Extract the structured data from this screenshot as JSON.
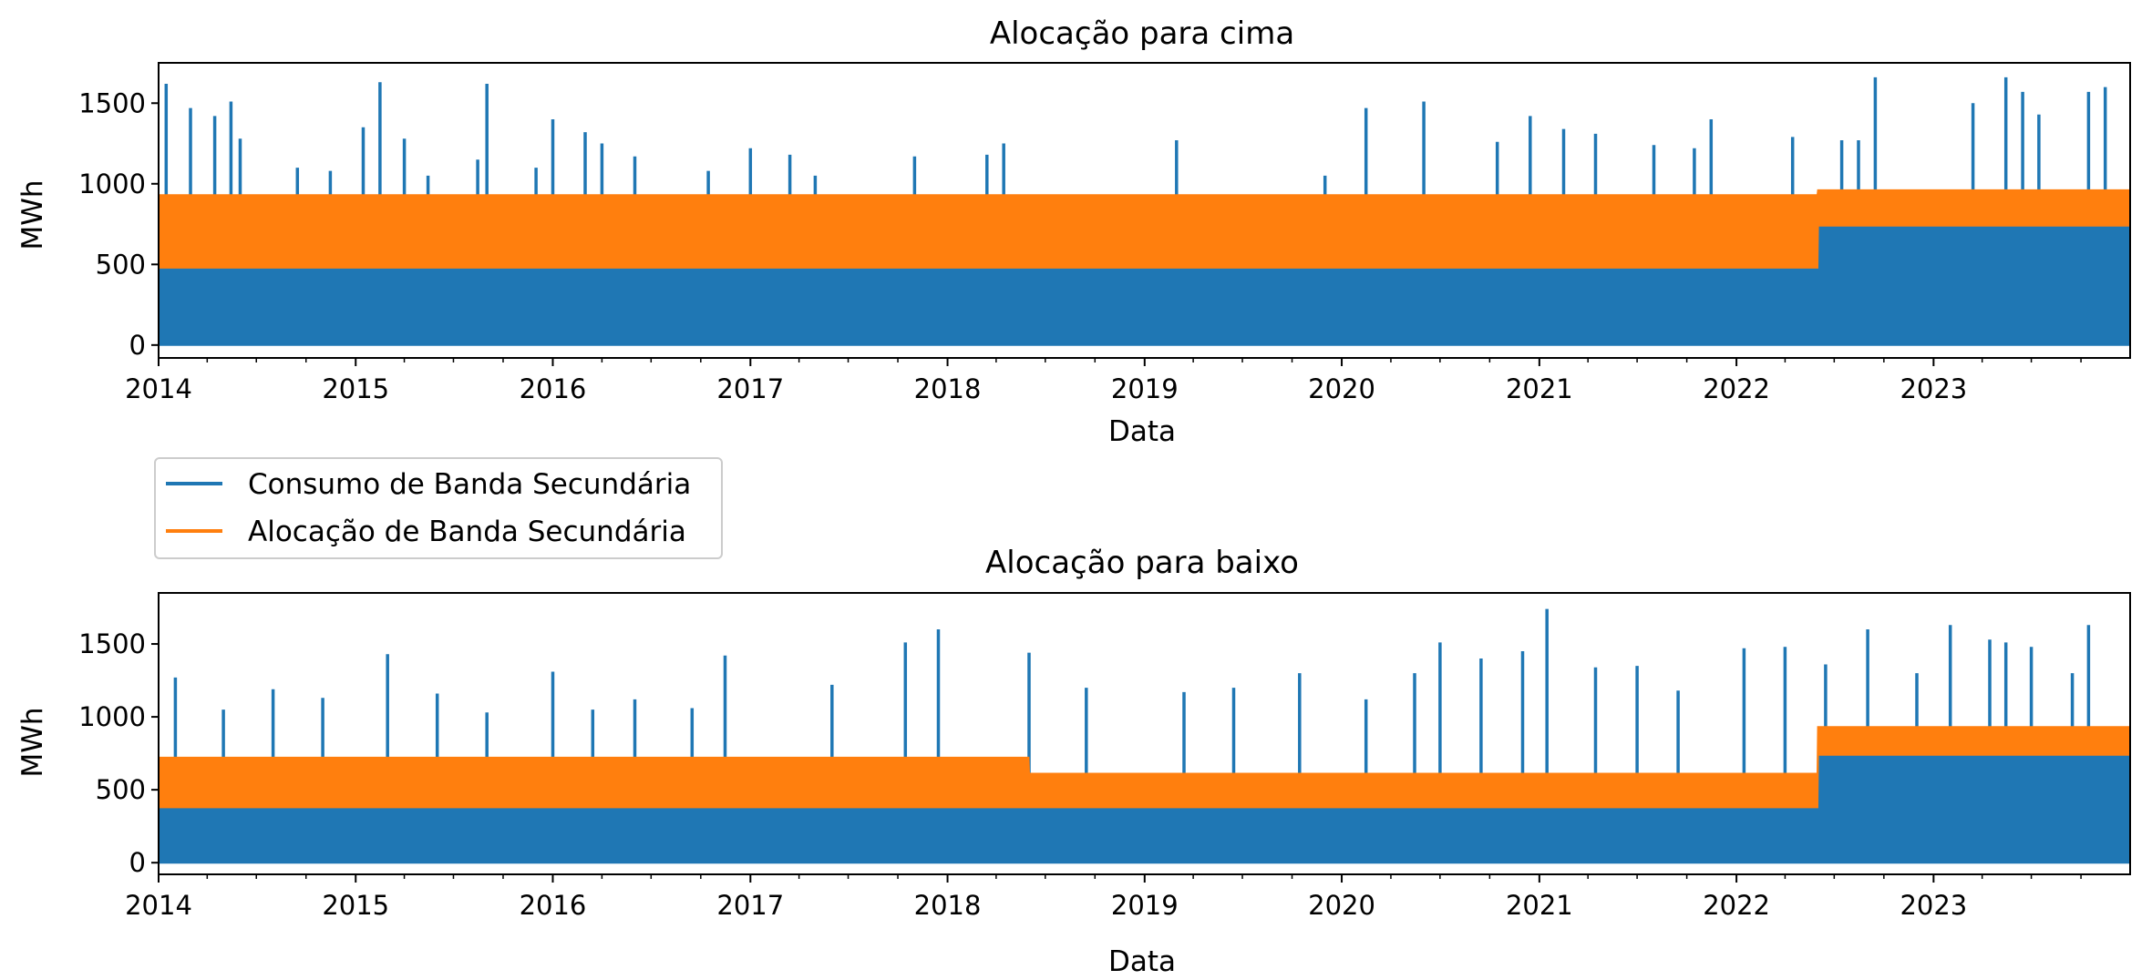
{
  "chart_data": [
    {
      "type": "line",
      "title": "Alocação para cima",
      "xlabel": "Data",
      "ylabel": "MWh",
      "xlim": [
        "2014-01-01",
        "2023-12-31"
      ],
      "ylim": [
        -80,
        1750
      ],
      "x_ticks": [
        "2014",
        "2015",
        "2016",
        "2017",
        "2018",
        "2019",
        "2020",
        "2021",
        "2022",
        "2023"
      ],
      "y_ticks": [
        0,
        500,
        1000,
        1500
      ],
      "grid": false,
      "series": [
        {
          "name": "Consumo de Banda Secundária",
          "color": "#1f77b4",
          "band": [
            {
              "x": "2014-01-01",
              "low": 0,
              "high": 480
            },
            {
              "x": "2022-05-31",
              "low": 0,
              "high": 480
            },
            {
              "x": "2022-06-01",
              "low": 0,
              "high": 740
            },
            {
              "x": "2023-12-31",
              "low": 0,
              "high": 740
            }
          ],
          "peaks": [
            {
              "x": "2014-01-15",
              "y": 1620
            },
            {
              "x": "2014-03-01",
              "y": 1470
            },
            {
              "x": "2014-04-15",
              "y": 1420
            },
            {
              "x": "2014-05-15",
              "y": 1510
            },
            {
              "x": "2014-06-01",
              "y": 1280
            },
            {
              "x": "2014-09-15",
              "y": 1100
            },
            {
              "x": "2014-11-15",
              "y": 1080
            },
            {
              "x": "2015-01-15",
              "y": 1350
            },
            {
              "x": "2015-02-15",
              "y": 1630
            },
            {
              "x": "2015-04-01",
              "y": 1280
            },
            {
              "x": "2015-05-15",
              "y": 1050
            },
            {
              "x": "2015-08-15",
              "y": 1150
            },
            {
              "x": "2015-09-01",
              "y": 1620
            },
            {
              "x": "2015-12-01",
              "y": 1100
            },
            {
              "x": "2016-01-01",
              "y": 1400
            },
            {
              "x": "2016-03-01",
              "y": 1320
            },
            {
              "x": "2016-04-01",
              "y": 1250
            },
            {
              "x": "2016-06-01",
              "y": 1170
            },
            {
              "x": "2016-10-15",
              "y": 1080
            },
            {
              "x": "2017-01-01",
              "y": 1220
            },
            {
              "x": "2017-03-15",
              "y": 1180
            },
            {
              "x": "2017-05-01",
              "y": 1050
            },
            {
              "x": "2017-11-01",
              "y": 1170
            },
            {
              "x": "2018-03-15",
              "y": 1180
            },
            {
              "x": "2018-04-15",
              "y": 1250
            },
            {
              "x": "2019-03-01",
              "y": 1270
            },
            {
              "x": "2019-12-01",
              "y": 1050
            },
            {
              "x": "2020-02-15",
              "y": 1470
            },
            {
              "x": "2020-06-01",
              "y": 1510
            },
            {
              "x": "2020-10-15",
              "y": 1260
            },
            {
              "x": "2020-12-15",
              "y": 1420
            },
            {
              "x": "2021-02-15",
              "y": 1340
            },
            {
              "x": "2021-04-15",
              "y": 1310
            },
            {
              "x": "2021-08-01",
              "y": 1240
            },
            {
              "x": "2021-10-15",
              "y": 1220
            },
            {
              "x": "2021-11-15",
              "y": 1400
            },
            {
              "x": "2022-04-15",
              "y": 1290
            },
            {
              "x": "2022-07-15",
              "y": 1270
            },
            {
              "x": "2022-08-15",
              "y": 1270
            },
            {
              "x": "2022-09-15",
              "y": 1660
            },
            {
              "x": "2023-03-15",
              "y": 1500
            },
            {
              "x": "2023-05-15",
              "y": 1660
            },
            {
              "x": "2023-06-15",
              "y": 1570
            },
            {
              "x": "2023-07-15",
              "y": 1430
            },
            {
              "x": "2023-10-15",
              "y": 1570
            },
            {
              "x": "2023-11-15",
              "y": 1600
            }
          ]
        },
        {
          "name": "Alocação de Banda Secundária",
          "color": "#ff7f0e",
          "band": [
            {
              "x": "2014-01-01",
              "low": 480,
              "high": 930
            },
            {
              "x": "2022-05-31",
              "low": 480,
              "high": 930
            },
            {
              "x": "2022-06-01",
              "low": 740,
              "high": 960
            },
            {
              "x": "2023-12-31",
              "low": 740,
              "high": 960
            }
          ]
        }
      ]
    },
    {
      "type": "line",
      "title": "Alocação para baixo",
      "xlabel": "Data",
      "ylabel": "MWh",
      "xlim": [
        "2014-01-01",
        "2023-12-31"
      ],
      "ylim": [
        -80,
        1850
      ],
      "x_ticks": [
        "2014",
        "2015",
        "2016",
        "2017",
        "2018",
        "2019",
        "2020",
        "2021",
        "2022",
        "2023"
      ],
      "y_ticks": [
        0,
        500,
        1000,
        1500
      ],
      "grid": false,
      "series": [
        {
          "name": "Consumo de Banda Secundária",
          "color": "#1f77b4",
          "band": [
            {
              "x": "2014-01-01",
              "low": 0,
              "high": 380
            },
            {
              "x": "2022-05-31",
              "low": 0,
              "high": 380
            },
            {
              "x": "2022-06-01",
              "low": 0,
              "high": 740
            },
            {
              "x": "2023-12-31",
              "low": 0,
              "high": 740
            }
          ],
          "peaks": [
            {
              "x": "2014-02-01",
              "y": 1270
            },
            {
              "x": "2014-05-01",
              "y": 1050
            },
            {
              "x": "2014-08-01",
              "y": 1190
            },
            {
              "x": "2014-11-01",
              "y": 1130
            },
            {
              "x": "2015-03-01",
              "y": 1430
            },
            {
              "x": "2015-06-01",
              "y": 1160
            },
            {
              "x": "2015-09-01",
              "y": 1030
            },
            {
              "x": "2016-01-01",
              "y": 1310
            },
            {
              "x": "2016-03-15",
              "y": 1050
            },
            {
              "x": "2016-06-01",
              "y": 1120
            },
            {
              "x": "2016-09-15",
              "y": 1060
            },
            {
              "x": "2016-11-15",
              "y": 1420
            },
            {
              "x": "2017-06-01",
              "y": 1220
            },
            {
              "x": "2017-10-15",
              "y": 1510
            },
            {
              "x": "2017-12-15",
              "y": 1600
            },
            {
              "x": "2018-06-01",
              "y": 1440
            },
            {
              "x": "2018-09-15",
              "y": 1200
            },
            {
              "x": "2019-03-15",
              "y": 1170
            },
            {
              "x": "2019-06-15",
              "y": 1200
            },
            {
              "x": "2019-10-15",
              "y": 1300
            },
            {
              "x": "2020-02-15",
              "y": 1120
            },
            {
              "x": "2020-05-15",
              "y": 1300
            },
            {
              "x": "2020-07-01",
              "y": 1510
            },
            {
              "x": "2020-09-15",
              "y": 1400
            },
            {
              "x": "2020-12-01",
              "y": 1450
            },
            {
              "x": "2021-01-15",
              "y": 1740
            },
            {
              "x": "2021-04-15",
              "y": 1340
            },
            {
              "x": "2021-07-01",
              "y": 1350
            },
            {
              "x": "2021-09-15",
              "y": 1180
            },
            {
              "x": "2022-01-15",
              "y": 1470
            },
            {
              "x": "2022-04-01",
              "y": 1480
            },
            {
              "x": "2022-06-15",
              "y": 1360
            },
            {
              "x": "2022-09-01",
              "y": 1600
            },
            {
              "x": "2022-12-01",
              "y": 1300
            },
            {
              "x": "2023-02-01",
              "y": 1630
            },
            {
              "x": "2023-04-15",
              "y": 1530
            },
            {
              "x": "2023-05-15",
              "y": 1510
            },
            {
              "x": "2023-07-01",
              "y": 1480
            },
            {
              "x": "2023-09-15",
              "y": 1300
            },
            {
              "x": "2023-10-15",
              "y": 1630
            }
          ]
        },
        {
          "name": "Alocação de Banda Secundária",
          "color": "#ff7f0e",
          "band": [
            {
              "x": "2014-01-01",
              "low": 380,
              "high": 720
            },
            {
              "x": "2018-05-31",
              "low": 380,
              "high": 720
            },
            {
              "x": "2018-06-01",
              "low": 380,
              "high": 610
            },
            {
              "x": "2022-05-31",
              "low": 380,
              "high": 610
            },
            {
              "x": "2022-06-01",
              "low": 740,
              "high": 930
            },
            {
              "x": "2023-12-31",
              "low": 740,
              "high": 930
            }
          ]
        }
      ]
    }
  ],
  "legend": {
    "placement": "between panels, left",
    "entries": [
      {
        "label": "Consumo de Banda Secundária",
        "color": "#1f77b4"
      },
      {
        "label": "Alocação de Banda Secundária",
        "color": "#ff7f0e"
      }
    ]
  }
}
